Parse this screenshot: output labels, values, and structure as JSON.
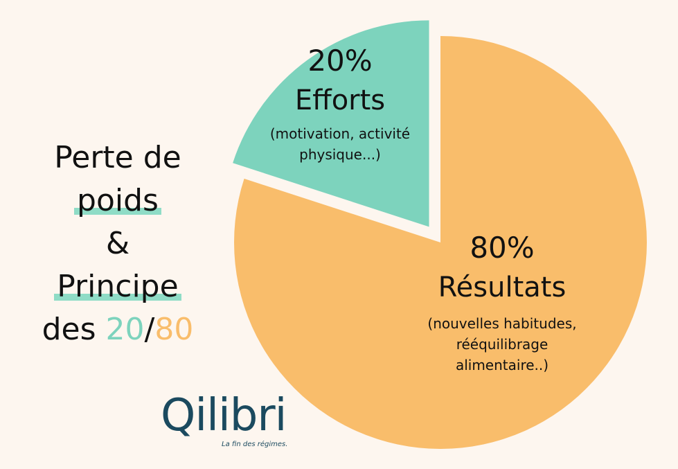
{
  "chart_data": {
    "type": "pie",
    "slices": [
      {
        "id": "efforts",
        "value": 20,
        "percent_label": "20%",
        "label": "Efforts",
        "description": "(motivation, activité physique...)",
        "color": "#7dd3bd",
        "exploded": true
      },
      {
        "id": "resultats",
        "value": 80,
        "percent_label": "80%",
        "label": "Résultats",
        "description": "(nouvelles habitudes, rééquilibrage alimentaire..)",
        "color": "#f9bd6b",
        "exploded": false
      }
    ]
  },
  "title": {
    "line1": "Perte de",
    "line2": "poids",
    "line3": "&",
    "line4": "Principe",
    "line5_prefix": "des ",
    "num20": "20",
    "slash": "/",
    "num80": "80"
  },
  "colors": {
    "background": "#fdf6ef",
    "highlight": "#8fdcc6",
    "brand": "#1b4a5f"
  },
  "logo": {
    "brand": "Qilibri",
    "tagline": "La fin des régimes."
  }
}
